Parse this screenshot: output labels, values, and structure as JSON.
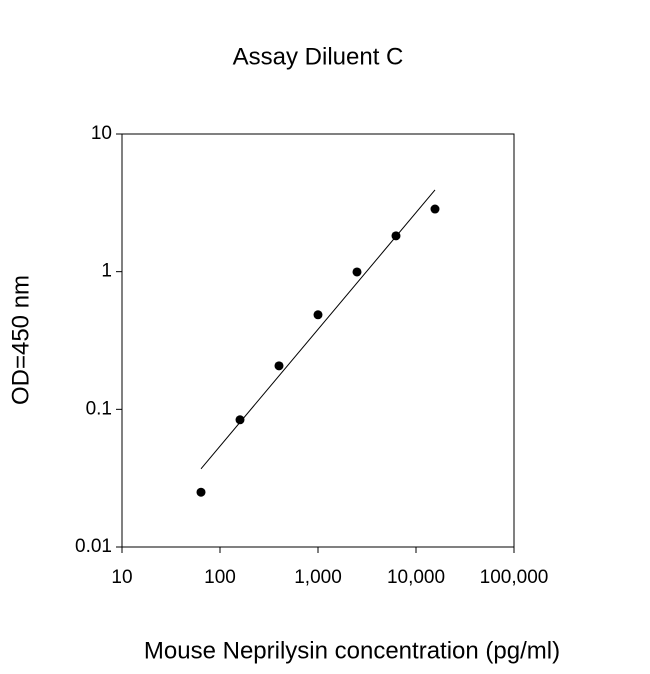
{
  "chart_data": {
    "type": "scatter",
    "title": "Assay Diluent C",
    "xlabel": "Mouse Neprilysin concentration (pg/ml)",
    "ylabel": "OD=450 nm",
    "xscale": "log",
    "yscale": "log",
    "series": [
      {
        "color": "#000000",
        "x": [
          64,
          160,
          400,
          1000,
          2500,
          6250,
          15625
        ],
        "values": [
          0.025,
          0.084,
          0.207,
          0.486,
          0.995,
          1.82,
          2.85
        ]
      }
    ],
    "fit": {
      "color": "#000000",
      "x": [
        64,
        15625
      ],
      "values": [
        0.037,
        3.92
      ]
    },
    "xlim": [
      10,
      100000
    ],
    "xticks": [
      10,
      100,
      {
        "value": 1000,
        "label": "1,000"
      },
      {
        "value": 10000,
        "label": "10,000"
      },
      {
        "value": 100000,
        "label": "100,000"
      }
    ],
    "ylim": [
      0.01,
      10
    ],
    "yticks": [
      0.01,
      0.1,
      1,
      10
    ]
  }
}
